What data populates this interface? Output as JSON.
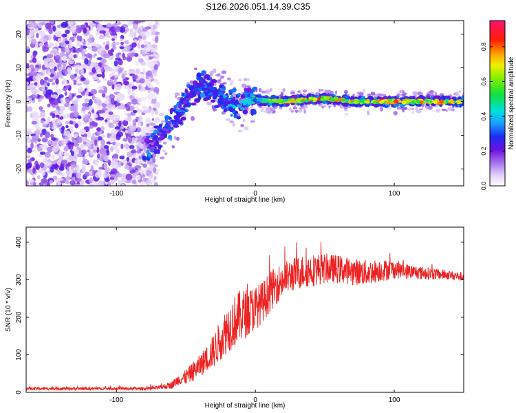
{
  "title": "S126.2026.051.14.39.C35",
  "colors": {
    "snr_line": "#ee2222",
    "axis": "#000000",
    "background": "#ffffff"
  },
  "chart_data": [
    {
      "type": "heatmap",
      "title": "",
      "xlabel": "Height of straight line (km)",
      "ylabel": "Frequency (Hz)",
      "xlim": [
        -165,
        150
      ],
      "ylim": [
        -25,
        24
      ],
      "xticks": [
        -100,
        0,
        100
      ],
      "yticks": [
        -20,
        -10,
        0,
        10,
        20
      ],
      "colorbar": {
        "label": "Normalized spectral amplitude",
        "range": [
          0,
          0.95
        ],
        "ticks": [
          "0.0",
          "0.2",
          "0.4",
          "0.6",
          "0.8"
        ],
        "colormap": "rainbow (white-purple-blue-cyan-green-yellow-red-magenta)"
      },
      "ridge": [
        {
          "x": -75,
          "f": -13,
          "amp": 0.25
        },
        {
          "x": -65,
          "f": -9,
          "amp": 0.3
        },
        {
          "x": -55,
          "f": -4,
          "amp": 0.35
        },
        {
          "x": -45,
          "f": 3,
          "amp": 0.3
        },
        {
          "x": -38,
          "f": 5,
          "amp": 0.35
        },
        {
          "x": -30,
          "f": 3,
          "amp": 0.35
        },
        {
          "x": -20,
          "f": 0,
          "amp": 0.4
        },
        {
          "x": -10,
          "f": -1,
          "amp": 0.45
        },
        {
          "x": 0,
          "f": 0.5,
          "amp": 0.5
        },
        {
          "x": 20,
          "f": 0,
          "amp": 0.85
        },
        {
          "x": 50,
          "f": 1,
          "amp": 0.85
        },
        {
          "x": 70,
          "f": 0,
          "amp": 0.8
        },
        {
          "x": 100,
          "f": 0,
          "amp": 0.85
        },
        {
          "x": 148,
          "f": 0,
          "amp": 0.8
        }
      ]
    },
    {
      "type": "line",
      "title": "",
      "xlabel": "Height of straight line (km)",
      "ylabel": "SNR (10 * v/v)",
      "xlim": [
        -165,
        150
      ],
      "ylim": [
        0,
        440
      ],
      "xticks": [
        -100,
        0,
        100
      ],
      "yticks": [
        0,
        100,
        200,
        300,
        400
      ],
      "series": [
        {
          "name": "SNR",
          "x": [
            -165,
            -140,
            -110,
            -80,
            -70,
            -60,
            -55,
            -50,
            -45,
            -40,
            -35,
            -30,
            -25,
            -20,
            -15,
            -10,
            -5,
            0,
            5,
            10,
            15,
            20,
            25,
            30,
            40,
            50,
            60,
            70,
            80,
            90,
            100,
            110,
            120,
            130,
            140,
            150
          ],
          "values": [
            10,
            10,
            10,
            10,
            12,
            20,
            35,
            40,
            55,
            70,
            90,
            110,
            140,
            170,
            190,
            205,
            215,
            225,
            240,
            265,
            285,
            300,
            310,
            318,
            325,
            330,
            328,
            322,
            318,
            325,
            328,
            322,
            318,
            315,
            312,
            308
          ],
          "spread": [
            4,
            4,
            4,
            4,
            5,
            10,
            15,
            20,
            25,
            30,
            35,
            45,
            55,
            65,
            70,
            70,
            65,
            60,
            55,
            55,
            50,
            48,
            45,
            45,
            45,
            40,
            38,
            35,
            35,
            30,
            25,
            20,
            18,
            15,
            12,
            12
          ]
        }
      ]
    }
  ]
}
